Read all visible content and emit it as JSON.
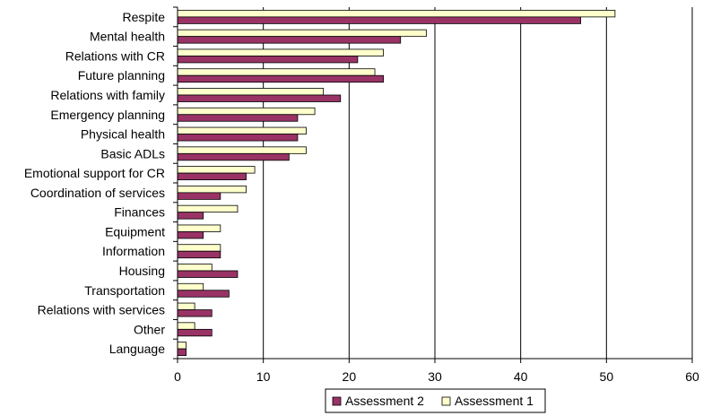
{
  "chart_data": {
    "type": "bar",
    "orientation": "horizontal",
    "categories": [
      "Respite",
      "Mental health",
      "Relations with CR",
      "Future planning",
      "Relations with family",
      "Emergency planning",
      "Physical health",
      "Basic ADLs",
      "Emotional support for CR",
      "Coordination of services",
      "Finances",
      "Equipment",
      "Information",
      "Housing",
      "Transportation",
      "Relations with services",
      "Other",
      "Language"
    ],
    "series": [
      {
        "name": "Assessment 1",
        "color": "#FFFFCC",
        "values": [
          51,
          29,
          24,
          23,
          17,
          16,
          15,
          15,
          9,
          8,
          7,
          5,
          5,
          4,
          3,
          2,
          2,
          1
        ]
      },
      {
        "name": "Assessment 2",
        "color": "#993366",
        "values": [
          47,
          26,
          21,
          24,
          19,
          14,
          14,
          13,
          8,
          5,
          3,
          3,
          5,
          7,
          6,
          4,
          4,
          1
        ]
      }
    ],
    "xlim": [
      0,
      60
    ],
    "x_ticks": [
      0,
      10,
      20,
      30,
      40,
      50,
      60
    ],
    "gridlines": "vertical",
    "legend": {
      "position": "bottom",
      "entries": [
        "Assessment 2",
        "Assessment 1"
      ]
    },
    "title": "",
    "xlabel": "",
    "ylabel": ""
  }
}
